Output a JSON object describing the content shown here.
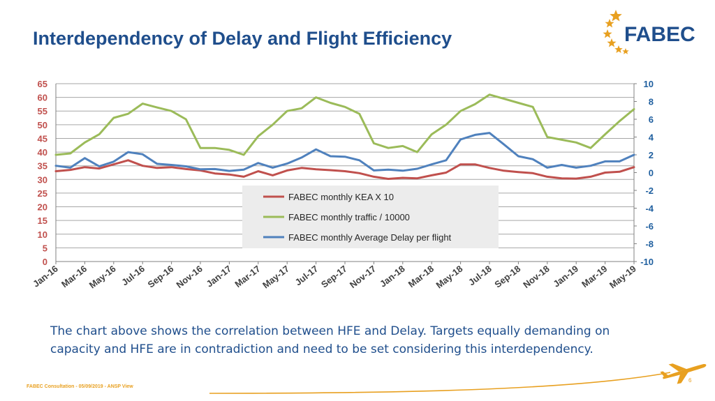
{
  "slide": {
    "title": "Interdependency of Delay and Flight Efficiency",
    "logo_text": "FABEC",
    "caption": "The chart above shows the correlation between HFE and Delay. Targets equally demanding on capacity and HFE are in contradiction and need to be set considering this interdependency.",
    "footer": "FABEC Consultation - 05/09/2019 - ANSP View",
    "page_number": "6"
  },
  "colors": {
    "title": "#1f4e8c",
    "accent": "#e8a020",
    "kea": "#c0504d",
    "traffic": "#9bbb59",
    "delay": "#4f81bd",
    "left_axis": "#c0504d",
    "right_axis": "#1f5f9f"
  },
  "chart_data": {
    "type": "line",
    "x": [
      "Jan-16",
      "Feb-16",
      "Mar-16",
      "Apr-16",
      "May-16",
      "Jun-16",
      "Jul-16",
      "Aug-16",
      "Sep-16",
      "Oct-16",
      "Nov-16",
      "Dec-16",
      "Jan-17",
      "Feb-17",
      "Mar-17",
      "Apr-17",
      "May-17",
      "Jun-17",
      "Jul-17",
      "Aug-17",
      "Sep-17",
      "Oct-17",
      "Nov-17",
      "Dec-17",
      "Jan-18",
      "Feb-18",
      "Mar-18",
      "Apr-18",
      "May-18",
      "Jun-18",
      "Jul-18",
      "Aug-18",
      "Sep-18",
      "Oct-18",
      "Nov-18",
      "Dec-18",
      "Jan-19",
      "Feb-19",
      "Mar-19",
      "Apr-19",
      "May-19"
    ],
    "x_tick_labels": [
      "Jan-16",
      "Mar-16",
      "May-16",
      "Jul-16",
      "Sep-16",
      "Nov-16",
      "Jan-17",
      "Mar-17",
      "May-17",
      "Jul-17",
      "Sep-17",
      "Nov-17",
      "Jan-18",
      "Mar-18",
      "May-18",
      "Jul-18",
      "Sep-18",
      "Nov-18",
      "Jan-19",
      "Mar-19",
      "May-19"
    ],
    "y_left": {
      "lim": [
        0,
        65
      ],
      "ticks": [
        "0",
        "5",
        "10",
        "15",
        "20",
        "25",
        "30",
        "35",
        "40",
        "45",
        "50",
        "55",
        "60",
        "65"
      ]
    },
    "y_right": {
      "lim": [
        -10,
        10
      ],
      "ticks": [
        "-10",
        "-8",
        "-6",
        "-4",
        "-2",
        "0",
        "2",
        "4",
        "6",
        "8",
        "10"
      ]
    },
    "grid": true,
    "legend_placement": "center",
    "series": [
      {
        "name": "FABEC monthly KEA X 10",
        "axis": "left",
        "values": [
          33,
          33.5,
          34.5,
          34,
          35.5,
          37,
          35,
          34.2,
          34.5,
          33.8,
          33.3,
          32.2,
          31.8,
          31,
          33,
          31.5,
          33.3,
          34.2,
          33.7,
          33.4,
          33,
          32.3,
          31,
          30.2,
          30.6,
          30.4,
          31.5,
          32.5,
          35.5,
          35.5,
          34.2,
          33.2,
          32.7,
          32.3,
          31,
          30.4,
          30.3,
          31,
          32.5,
          32.8,
          34.5
        ]
      },
      {
        "name": "FABEC monthly traffic / 10000",
        "axis": "left",
        "values": [
          39,
          39.5,
          43.5,
          46.5,
          52.5,
          54,
          57.7,
          56.3,
          55,
          52,
          41.5,
          41.5,
          40.8,
          39,
          45.8,
          50,
          55,
          56,
          60,
          58,
          56.5,
          54,
          43.2,
          41.5,
          42.2,
          40,
          46.5,
          50,
          55,
          57.5,
          61,
          59.5,
          58,
          56.5,
          45.5,
          44.5,
          43.5,
          41.5,
          46.5,
          51.3,
          55.7
        ]
      },
      {
        "name": "FABEC monthly Average Delay per flight",
        "axis": "left",
        "values": [
          35,
          34.3,
          37.8,
          34.8,
          36.5,
          40,
          39.2,
          35.7,
          35.3,
          34.8,
          33.7,
          33.8,
          33.1,
          33.6,
          36,
          34.3,
          35.8,
          38,
          41,
          38.5,
          38.3,
          37,
          33.3,
          33.6,
          33.2,
          33.9,
          35.5,
          37,
          44.6,
          46.3,
          47,
          42.8,
          38.5,
          37.4,
          34.3,
          35.3,
          34.3,
          35,
          36.6,
          36.6,
          39
        ]
      }
    ]
  }
}
